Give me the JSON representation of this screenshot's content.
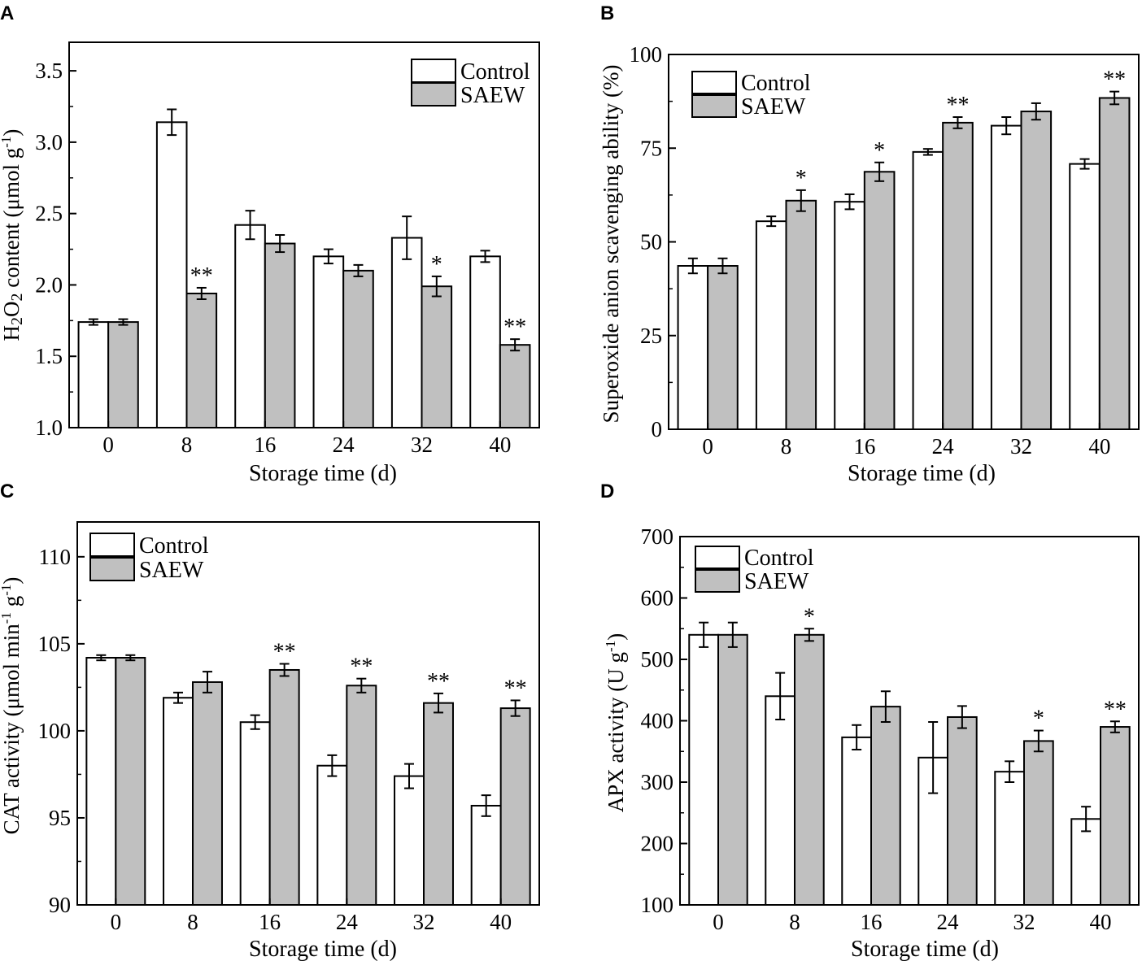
{
  "figure": {
    "bar_colors": {
      "control": "#ffffff",
      "saew": "#c0c0c0"
    },
    "stroke_color": "#000000"
  },
  "chart_data": [
    {
      "panel": "A",
      "type": "bar",
      "xlabel": "Storage time (d)",
      "ylabel": "H2O2 content (μmol g-1)",
      "ylim": [
        1.0,
        3.7
      ],
      "yticks": [
        "1.0",
        "1.5",
        "2.0",
        "2.5",
        "3.0",
        "3.5"
      ],
      "ytick_values": [
        1.0,
        1.5,
        2.0,
        2.5,
        3.0,
        3.5
      ],
      "categories": [
        "0",
        "8",
        "16",
        "24",
        "32",
        "40"
      ],
      "legend": {
        "position": "top-right",
        "entries": [
          "Control",
          "SAEW"
        ]
      },
      "series": [
        {
          "name": "Control",
          "values": [
            1.74,
            3.14,
            2.42,
            2.2,
            2.33,
            2.2
          ],
          "errors": [
            0.02,
            0.09,
            0.1,
            0.05,
            0.15,
            0.04
          ],
          "marks": [
            "",
            "",
            "",
            "",
            "",
            ""
          ]
        },
        {
          "name": "SAEW",
          "values": [
            1.74,
            1.94,
            2.29,
            2.1,
            1.99,
            1.58
          ],
          "errors": [
            0.02,
            0.04,
            0.06,
            0.04,
            0.07,
            0.04
          ],
          "marks": [
            "",
            "**",
            "",
            "",
            "*",
            "**"
          ]
        }
      ]
    },
    {
      "panel": "B",
      "type": "bar",
      "xlabel": "Storage time (d)",
      "ylabel": "Superoxide anion scavenging ability (%)",
      "ylim": [
        0,
        100
      ],
      "yticks": [
        "0",
        "25",
        "50",
        "75",
        "100"
      ],
      "ytick_values": [
        0,
        25,
        50,
        75,
        100
      ],
      "categories": [
        "0",
        "8",
        "16",
        "24",
        "32",
        "40"
      ],
      "legend": {
        "position": "top-left",
        "entries": [
          "Control",
          "SAEW"
        ]
      },
      "series": [
        {
          "name": "Control",
          "values": [
            43.6,
            55.5,
            60.7,
            74.0,
            81.0,
            70.8
          ],
          "errors": [
            2.0,
            1.3,
            2.0,
            0.8,
            2.3,
            1.3
          ],
          "marks": [
            "",
            "",
            "",
            "",
            "",
            ""
          ]
        },
        {
          "name": "SAEW",
          "values": [
            43.6,
            61.0,
            68.7,
            81.8,
            84.8,
            88.4
          ],
          "errors": [
            2.0,
            2.8,
            2.5,
            1.5,
            2.2,
            1.7
          ],
          "marks": [
            "",
            "*",
            "*",
            "**",
            "",
            "**"
          ]
        }
      ]
    },
    {
      "panel": "C",
      "type": "bar",
      "xlabel": "Storage time (d)",
      "ylabel": "CAT activity (μmol min-1 g-1)",
      "ylim": [
        90,
        112
      ],
      "yticks": [
        "90",
        "95",
        "100",
        "105",
        "110"
      ],
      "ytick_values": [
        90,
        95,
        100,
        105,
        110
      ],
      "categories": [
        "0",
        "8",
        "16",
        "24",
        "32",
        "40"
      ],
      "legend": {
        "position": "top-left",
        "entries": [
          "Control",
          "SAEW"
        ]
      },
      "series": [
        {
          "name": "Control",
          "values": [
            104.2,
            101.9,
            100.5,
            98.0,
            97.4,
            95.7
          ],
          "errors": [
            0.15,
            0.3,
            0.4,
            0.6,
            0.7,
            0.6
          ],
          "marks": [
            "",
            "",
            "",
            "",
            "",
            ""
          ]
        },
        {
          "name": "SAEW",
          "values": [
            104.2,
            102.8,
            103.5,
            102.6,
            101.6,
            101.3
          ],
          "errors": [
            0.15,
            0.6,
            0.35,
            0.4,
            0.55,
            0.45
          ],
          "marks": [
            "",
            "",
            "**",
            "**",
            "**",
            "**"
          ]
        }
      ]
    },
    {
      "panel": "D",
      "type": "bar",
      "xlabel": "Storage time (d)",
      "ylabel": "APX activity (U g-1)",
      "ylim": [
        100,
        700
      ],
      "yticks": [
        "100",
        "200",
        "300",
        "400",
        "500",
        "600",
        "700"
      ],
      "ytick_values": [
        100,
        200,
        300,
        400,
        500,
        600,
        700
      ],
      "categories": [
        "0",
        "8",
        "16",
        "24",
        "32",
        "40"
      ],
      "legend": {
        "position": "top-left",
        "entries": [
          "Control",
          "SAEW"
        ]
      },
      "series": [
        {
          "name": "Control",
          "values": [
            540,
            440,
            373,
            340,
            317,
            240
          ],
          "errors": [
            20,
            38,
            20,
            58,
            17,
            20
          ],
          "marks": [
            "",
            "",
            "",
            "",
            "",
            ""
          ]
        },
        {
          "name": "SAEW",
          "values": [
            540,
            540,
            423,
            406,
            367,
            390
          ],
          "errors": [
            20,
            10,
            25,
            18,
            17,
            9
          ],
          "marks": [
            "",
            "*",
            "",
            "",
            "*",
            "**"
          ]
        }
      ]
    }
  ]
}
